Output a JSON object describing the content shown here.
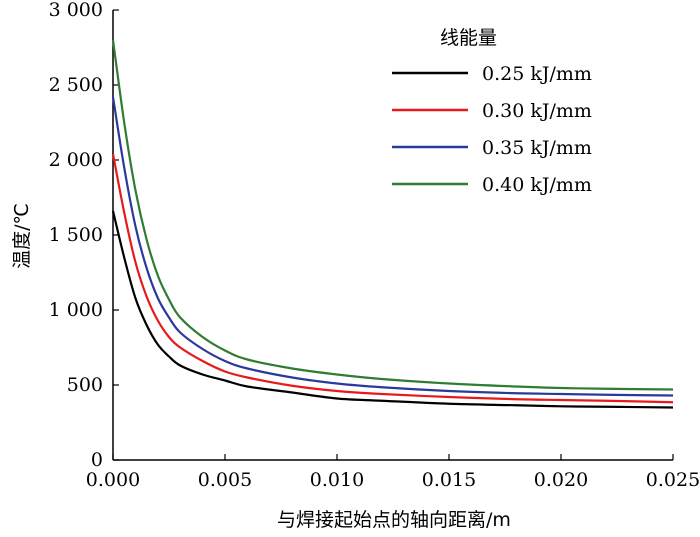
{
  "chart_data": {
    "type": "line",
    "title": "",
    "xlabel": "与焊接起始点的轴向距离/m",
    "ylabel": "温度/℃",
    "xlim": [
      0,
      0.025
    ],
    "ylim": [
      0,
      3000
    ],
    "x_ticks": [
      0,
      0.005,
      0.01,
      0.015,
      0.02,
      0.025
    ],
    "x_tick_labels": [
      "0.000",
      "0.005",
      "0.010",
      "0.015",
      "0.020",
      "0.025"
    ],
    "y_ticks": [
      0,
      500,
      1000,
      1500,
      2000,
      2500,
      3000
    ],
    "y_tick_labels": [
      "0",
      "500",
      "1 000",
      "1 500",
      "2 000",
      "2 500",
      "3 000"
    ],
    "grid": false,
    "legend": {
      "title": "线能量",
      "position": "top-right"
    },
    "x": [
      0,
      0.0005,
      0.001,
      0.0015,
      0.002,
      0.0025,
      0.003,
      0.004,
      0.005,
      0.006,
      0.008,
      0.01,
      0.012,
      0.015,
      0.018,
      0.02,
      0.022,
      0.025
    ],
    "series": [
      {
        "name": "0.25 kJ/mm",
        "color": "#000000",
        "values": [
          1660,
          1350,
          1080,
          900,
          770,
          690,
          630,
          570,
          530,
          490,
          450,
          410,
          395,
          375,
          365,
          358,
          355,
          350
        ]
      },
      {
        "name": "0.30 kJ/mm",
        "color": "#e8191b",
        "values": [
          2040,
          1650,
          1320,
          1090,
          930,
          820,
          750,
          660,
          590,
          550,
          495,
          460,
          440,
          420,
          405,
          400,
          395,
          385
        ]
      },
      {
        "name": "0.35 kJ/mm",
        "color": "#2a3a9c",
        "values": [
          2420,
          1950,
          1560,
          1280,
          1080,
          950,
          850,
          740,
          660,
          610,
          550,
          510,
          485,
          460,
          445,
          440,
          435,
          430
        ]
      },
      {
        "name": "0.40 kJ/mm",
        "color": "#2e7d32",
        "values": [
          2800,
          2250,
          1800,
          1470,
          1230,
          1070,
          950,
          820,
          730,
          670,
          610,
          570,
          540,
          510,
          490,
          480,
          475,
          470
        ]
      }
    ]
  }
}
